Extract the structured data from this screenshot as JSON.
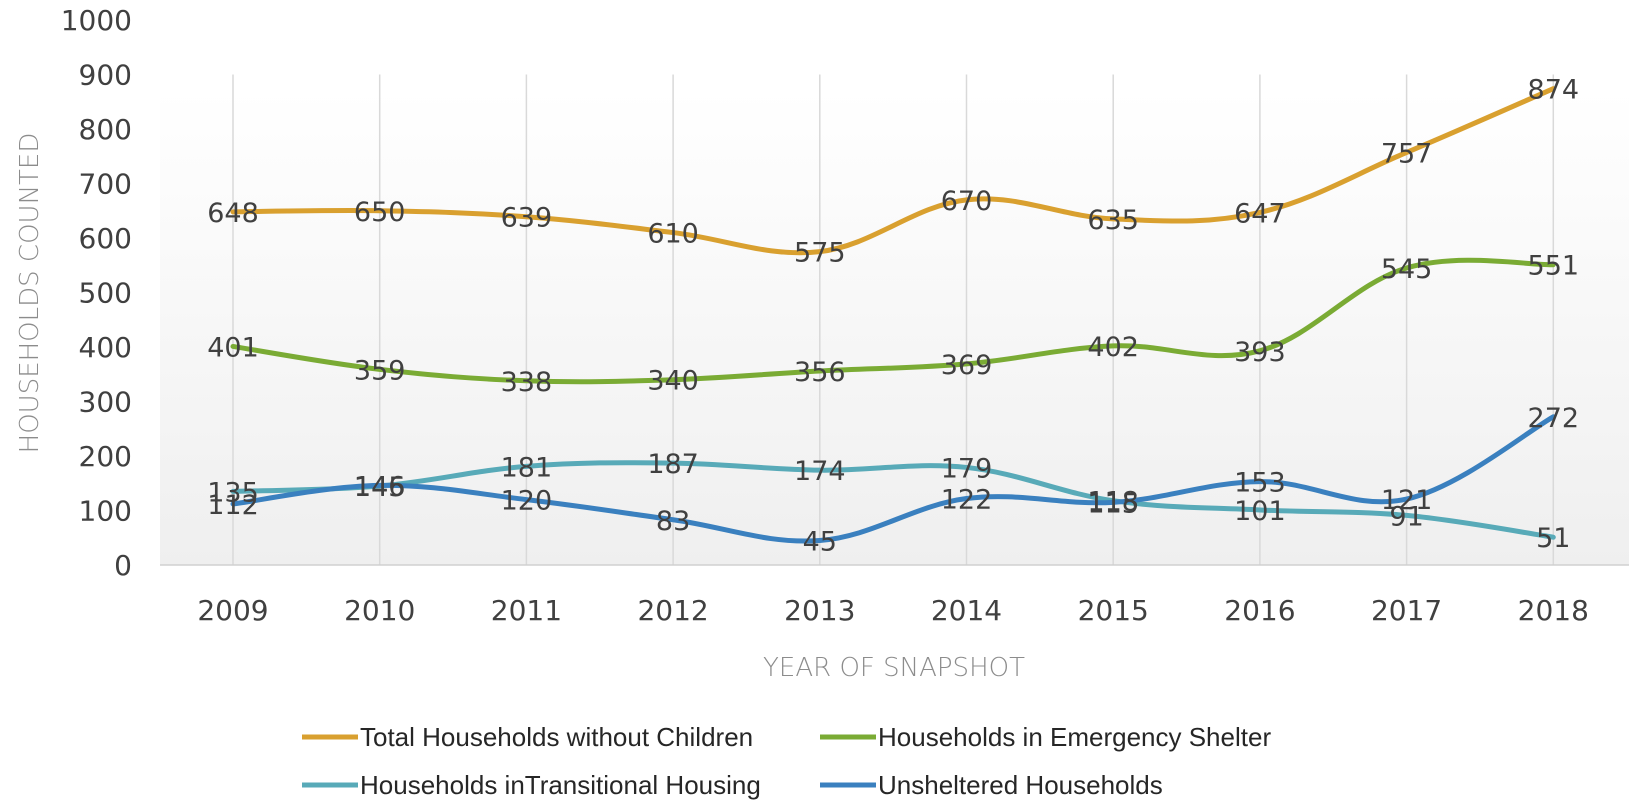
{
  "chart_data": {
    "type": "line",
    "title": "",
    "xlabel": "YEAR OF SNAPSHOT",
    "ylabel": "HOUSEHOLDS COUNTED",
    "categories": [
      "2009",
      "2010",
      "2011",
      "2012",
      "2013",
      "2014",
      "2015",
      "2016",
      "2017",
      "2018"
    ],
    "ylim": [
      0,
      1000
    ],
    "yticks": [
      "0",
      "100",
      "200",
      "300",
      "400",
      "500",
      "600",
      "700",
      "800",
      "900",
      "1000"
    ],
    "grid": "vertical",
    "legend_position": "bottom",
    "series": [
      {
        "name": "Total Households without Children",
        "color": "#D9A02F",
        "values": [
          648,
          650,
          639,
          610,
          575,
          670,
          635,
          647,
          757,
          874
        ]
      },
      {
        "name": "Households in Emergency Shelter",
        "color": "#7AAB34",
        "values": [
          401,
          359,
          338,
          340,
          356,
          369,
          402,
          393,
          545,
          551
        ]
      },
      {
        "name": "Households inTransitional Housing",
        "color": "#58AAB8",
        "values": [
          135,
          145,
          181,
          187,
          174,
          179,
          118,
          101,
          91,
          51
        ]
      },
      {
        "name": "Unsheltered Households",
        "color": "#3A80BF",
        "values": [
          112,
          146,
          120,
          83,
          45,
          122,
          115,
          153,
          121,
          272
        ]
      }
    ]
  }
}
